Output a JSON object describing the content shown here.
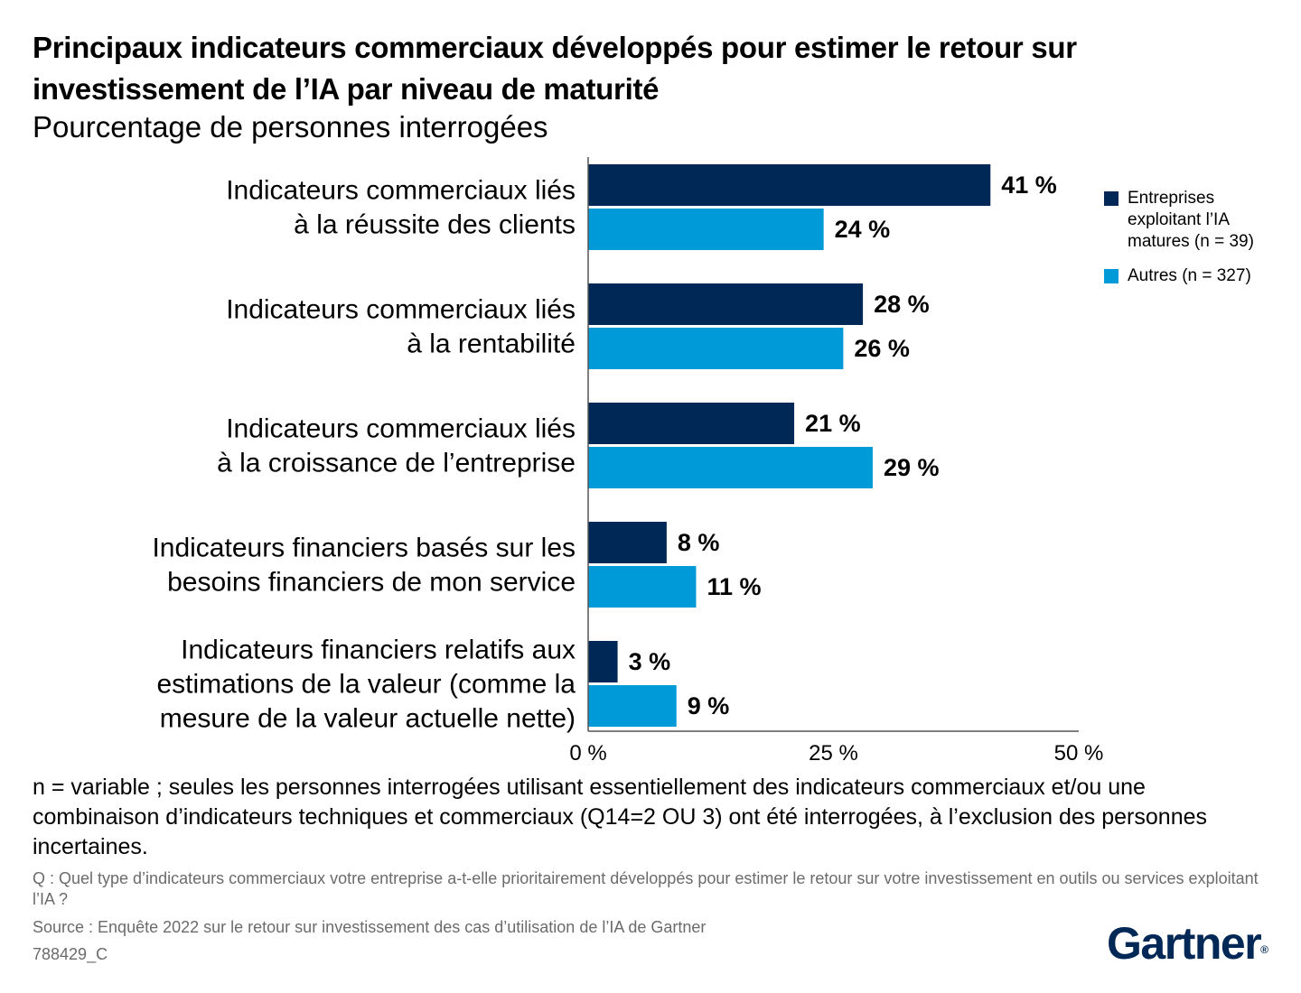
{
  "title": "Principaux indicateurs commerciaux développés pour estimer le retour sur investissement de l’IA par niveau de maturité",
  "subtitle": "Pourcentage de personnes interrogées",
  "chart_data": {
    "type": "bar",
    "orientation": "horizontal",
    "categories": [
      [
        "Indicateurs commerciaux liés",
        "à la réussite des clients"
      ],
      [
        "Indicateurs commerciaux liés",
        "à la rentabilité"
      ],
      [
        "Indicateurs commerciaux liés",
        "à la croissance de l’entreprise"
      ],
      [
        "Indicateurs financiers basés sur les",
        "besoins financiers de mon service"
      ],
      [
        "Indicateurs financiers relatifs aux",
        "estimations de la valeur (comme la",
        "mesure de la valeur actuelle nette)"
      ]
    ],
    "series": [
      {
        "name": "Entreprises exploitant l’IA matures (n = 39)",
        "values": [
          41,
          28,
          21,
          8,
          3
        ],
        "labels": [
          "41 %",
          "28 %",
          "21 %",
          "8 %",
          "3 %"
        ],
        "color": "#002856"
      },
      {
        "name": "Autres (n = 327)",
        "values": [
          24,
          26,
          29,
          11,
          9
        ],
        "labels": [
          "24 %",
          "26 %",
          "29 %",
          "11 %",
          "9 %"
        ],
        "color": "#009ad9"
      }
    ],
    "xlim": [
      0,
      50
    ],
    "xticks": [
      0,
      25,
      50
    ],
    "xtick_labels": [
      "0 %",
      "25 %",
      "50 %"
    ],
    "grid": false,
    "legend_position": "right"
  },
  "legend": {
    "mature_label": "Entreprises exploitant l’IA matures (n = 39)",
    "others_label": "Autres (n = 327)"
  },
  "note": "n = variable ; seules les personnes interrogées utilisant essentiellement des indicateurs commerciaux et/ou une combinaison d’indicateurs techniques et commerciaux (Q14=2 OU 3) ont été interrogées, à l’exclusion des personnes incertaines.",
  "question": "Q : Quel type d’indicateurs commerciaux votre entreprise a-t-elle prioritairement développés pour estimer le retour sur votre investissement en outils ou services exploitant l’IA ?",
  "source": "Source : Enquête 2022 sur le retour sur investissement des cas d’utilisation de l’IA de Gartner",
  "code": "788429_C",
  "logo": {
    "text": "Gartner",
    "mark": "®"
  }
}
